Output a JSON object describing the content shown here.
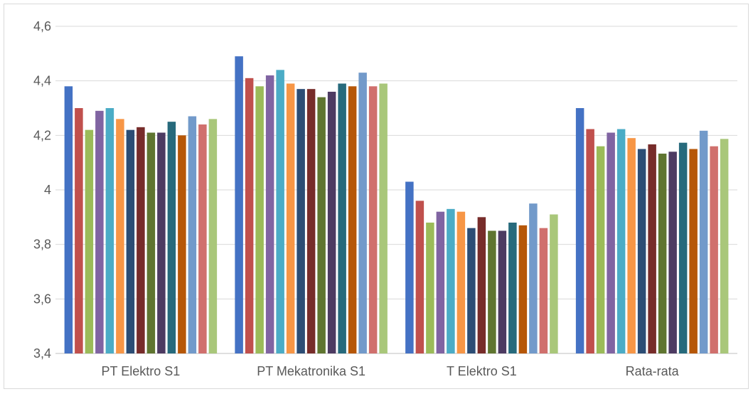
{
  "chart_data": {
    "type": "bar",
    "categories": [
      "PT Elektro S1",
      "PT Mekatronika S1",
      "T Elektro S1",
      "Rata-rata"
    ],
    "ylim": [
      3.4,
      4.6
    ],
    "yticks": [
      "3,4",
      "3,6",
      "3,8",
      "4",
      "4,2",
      "4,4",
      "4,6"
    ],
    "ytick_values": [
      3.4,
      3.6,
      3.8,
      4.0,
      4.2,
      4.4,
      4.6
    ],
    "grid": true,
    "colors": [
      "#4472C4",
      "#C0504D",
      "#9BBB59",
      "#8064A2",
      "#4BACC6",
      "#F79646",
      "#2C4D75",
      "#772C2A",
      "#5F7530",
      "#4D3B62",
      "#276A7C",
      "#B65708",
      "#729ACA",
      "#D0706D",
      "#A9C77A"
    ],
    "series": [
      {
        "values": [
          4.38,
          4.49,
          4.03,
          4.3
        ]
      },
      {
        "values": [
          4.3,
          4.41,
          3.96,
          4.223
        ]
      },
      {
        "values": [
          4.22,
          4.38,
          3.88,
          4.16
        ]
      },
      {
        "values": [
          4.29,
          4.42,
          3.92,
          4.21
        ]
      },
      {
        "values": [
          4.3,
          4.44,
          3.93,
          4.223
        ]
      },
      {
        "values": [
          4.26,
          4.39,
          3.92,
          4.19
        ]
      },
      {
        "values": [
          4.22,
          4.37,
          3.86,
          4.15
        ]
      },
      {
        "values": [
          4.23,
          4.37,
          3.9,
          4.167
        ]
      },
      {
        "values": [
          4.21,
          4.34,
          3.85,
          4.133
        ]
      },
      {
        "values": [
          4.21,
          4.36,
          3.85,
          4.14
        ]
      },
      {
        "values": [
          4.25,
          4.39,
          3.88,
          4.173
        ]
      },
      {
        "values": [
          4.2,
          4.38,
          3.87,
          4.15
        ]
      },
      {
        "values": [
          4.27,
          4.43,
          3.95,
          4.217
        ]
      },
      {
        "values": [
          4.24,
          4.38,
          3.86,
          4.16
        ]
      },
      {
        "values": [
          4.26,
          4.39,
          3.91,
          4.187
        ]
      }
    ]
  }
}
